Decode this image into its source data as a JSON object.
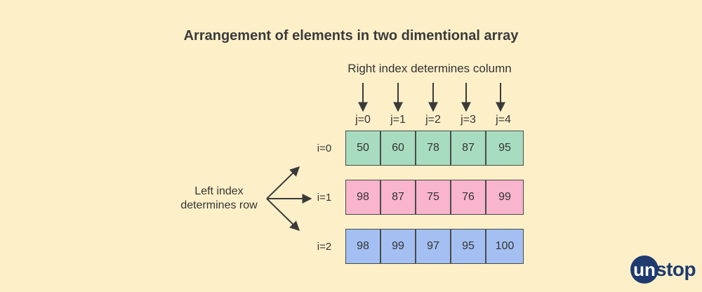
{
  "title": "Arrangement of elements in two dimentional array",
  "column_caption": "Right index determines column",
  "row_caption_line1": "Left index",
  "row_caption_line2": "determines row",
  "column_labels": [
    "j=0",
    "j=1",
    "j=2",
    "j=3",
    "j=4"
  ],
  "rows": [
    {
      "label": "i=0",
      "color": "#a8dcc0",
      "values": [
        "50",
        "60",
        "78",
        "87",
        "95"
      ]
    },
    {
      "label": "i=1",
      "color": "#f9b4ce",
      "values": [
        "98",
        "87",
        "75",
        "76",
        "99"
      ]
    },
    {
      "label": "i=2",
      "color": "#a4c0f2",
      "values": [
        "98",
        "99",
        "97",
        "95",
        "100"
      ]
    }
  ],
  "logo": {
    "first": "un",
    "rest": "stop",
    "color": "#1e3a6e"
  }
}
